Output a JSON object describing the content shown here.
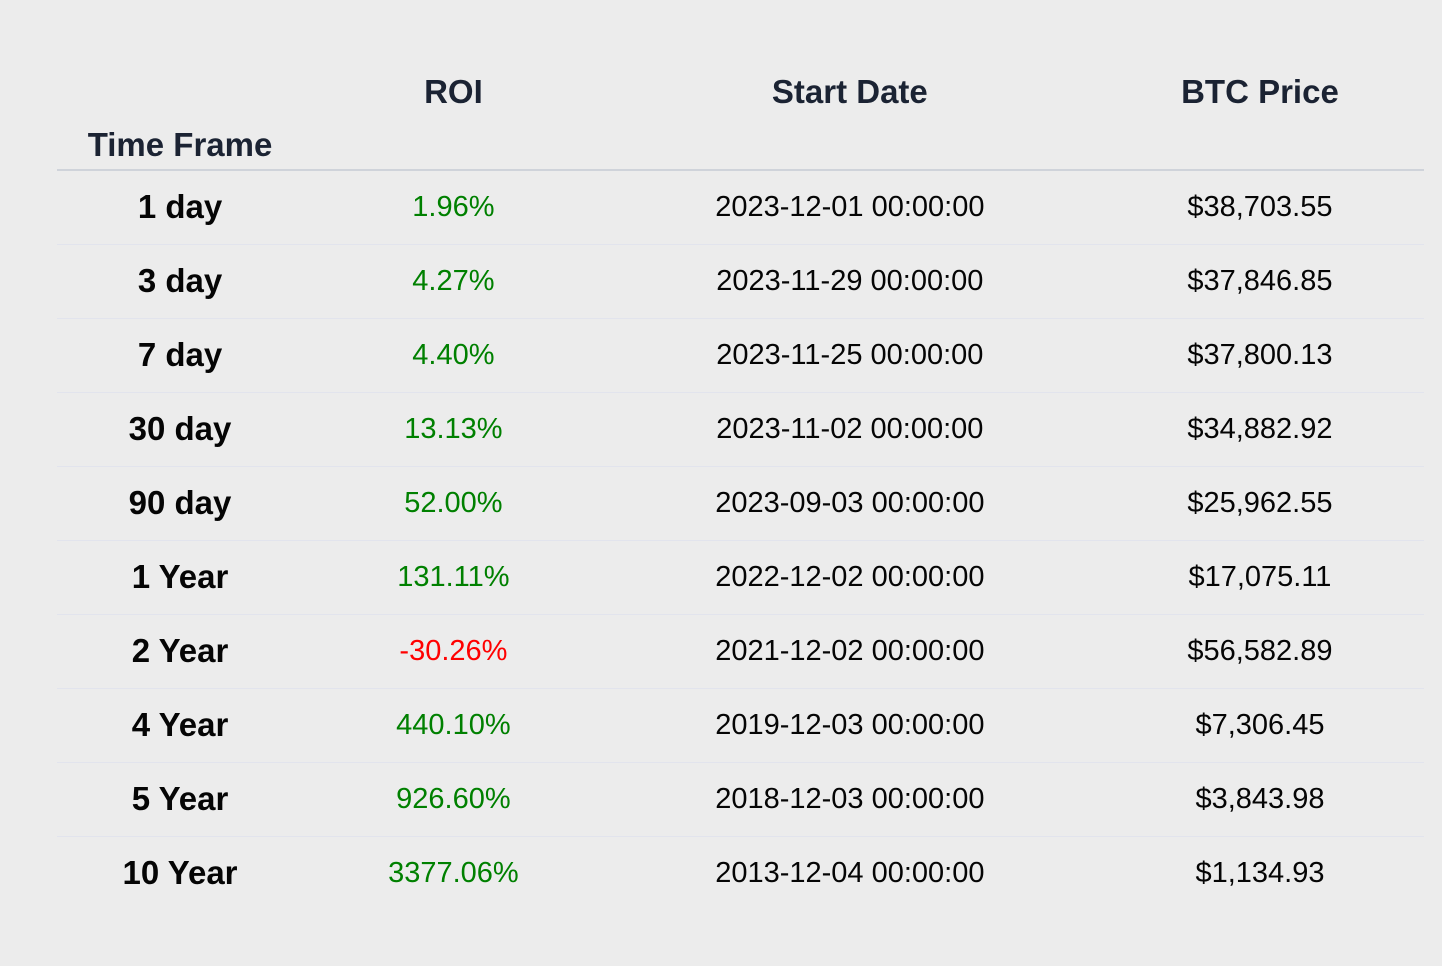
{
  "colors": {
    "background": "#ececec",
    "header_text": "#1b2333",
    "body_text": "#050505",
    "positive_roi": "#008000",
    "negative_roi": "#ff0000",
    "header_border": "#cfd3da",
    "row_divider": "#e2e4ed"
  },
  "chart_data": {
    "type": "table",
    "index_label": "Time Frame",
    "columns": [
      "ROI",
      "Start Date",
      "BTC Price"
    ],
    "layout_hints": {
      "alignment": "center",
      "header_bold": true,
      "row_labels_bold": true,
      "grid": "horizontal-dividers-only"
    },
    "rows": [
      {
        "time_frame": "1 day",
        "roi": "1.96%",
        "roi_value": 1.96,
        "roi_sentiment": "positive",
        "start_date": "2023-12-01 00:00:00",
        "btc_price": "$38,703.55",
        "btc_price_value": 38703.55
      },
      {
        "time_frame": "3 day",
        "roi": "4.27%",
        "roi_value": 4.27,
        "roi_sentiment": "positive",
        "start_date": "2023-11-29 00:00:00",
        "btc_price": "$37,846.85",
        "btc_price_value": 37846.85
      },
      {
        "time_frame": "7 day",
        "roi": "4.40%",
        "roi_value": 4.4,
        "roi_sentiment": "positive",
        "start_date": "2023-11-25 00:00:00",
        "btc_price": "$37,800.13",
        "btc_price_value": 37800.13
      },
      {
        "time_frame": "30 day",
        "roi": "13.13%",
        "roi_value": 13.13,
        "roi_sentiment": "positive",
        "start_date": "2023-11-02 00:00:00",
        "btc_price": "$34,882.92",
        "btc_price_value": 34882.92
      },
      {
        "time_frame": "90 day",
        "roi": "52.00%",
        "roi_value": 52.0,
        "roi_sentiment": "positive",
        "start_date": "2023-09-03 00:00:00",
        "btc_price": "$25,962.55",
        "btc_price_value": 25962.55
      },
      {
        "time_frame": "1 Year",
        "roi": "131.11%",
        "roi_value": 131.11,
        "roi_sentiment": "positive",
        "start_date": "2022-12-02 00:00:00",
        "btc_price": "$17,075.11",
        "btc_price_value": 17075.11
      },
      {
        "time_frame": "2 Year",
        "roi": "-30.26%",
        "roi_value": -30.26,
        "roi_sentiment": "negative",
        "start_date": "2021-12-02 00:00:00",
        "btc_price": "$56,582.89",
        "btc_price_value": 56582.89
      },
      {
        "time_frame": "4 Year",
        "roi": "440.10%",
        "roi_value": 440.1,
        "roi_sentiment": "positive",
        "start_date": "2019-12-03 00:00:00",
        "btc_price": "$7,306.45",
        "btc_price_value": 7306.45
      },
      {
        "time_frame": "5 Year",
        "roi": "926.60%",
        "roi_value": 926.6,
        "roi_sentiment": "positive",
        "start_date": "2018-12-03 00:00:00",
        "btc_price": "$3,843.98",
        "btc_price_value": 3843.98
      },
      {
        "time_frame": "10 Year",
        "roi": "3377.06%",
        "roi_value": 3377.06,
        "roi_sentiment": "positive",
        "start_date": "2013-12-04 00:00:00",
        "btc_price": "$1,134.93",
        "btc_price_value": 1134.93
      }
    ]
  }
}
